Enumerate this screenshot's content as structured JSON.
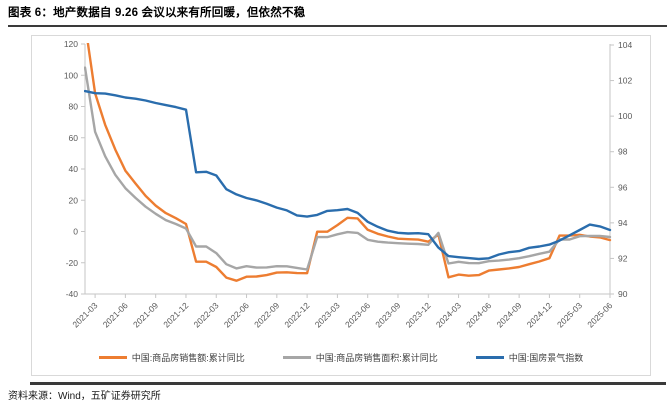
{
  "header": {
    "title": "图表 6：地产数据自 9.26 会议以来有所回暖，但依然不稳"
  },
  "footer": {
    "source": "资料来源：Wind，五矿证券研究所"
  },
  "chart_data": {
    "type": "line",
    "x": [
      "2021-02",
      "2021-03",
      "2021-04",
      "2021-05",
      "2021-06",
      "2021-07",
      "2021-08",
      "2021-09",
      "2021-10",
      "2021-11",
      "2021-12",
      "2022-01",
      "2022-02",
      "2022-03",
      "2022-04",
      "2022-05",
      "2022-06",
      "2022-07",
      "2022-08",
      "2022-09",
      "2022-10",
      "2022-11",
      "2022-12",
      "2023-01",
      "2023-02",
      "2023-03",
      "2023-04",
      "2023-05",
      "2023-06",
      "2023-07",
      "2023-08",
      "2023-09",
      "2023-10",
      "2023-11",
      "2023-12",
      "2024-01",
      "2024-02",
      "2024-03",
      "2024-04",
      "2024-05",
      "2024-06",
      "2024-07",
      "2024-08",
      "2024-09",
      "2024-10",
      "2024-11",
      "2024-12",
      "2025-01",
      "2025-02",
      "2025-03",
      "2025-04",
      "2025-05",
      "2025-06"
    ],
    "x_tick_labels": [
      "2021-03",
      "2021-06",
      "2021-09",
      "2021-12",
      "2022-03",
      "2022-06",
      "2022-09",
      "2022-12",
      "2023-03",
      "2023-06",
      "2023-09",
      "2023-12",
      "2024-03",
      "2024-06",
      "2024-09",
      "2024-12",
      "2025-03",
      "2025-06"
    ],
    "left_axis": {
      "ticks": [
        120,
        100,
        80,
        60,
        40,
        20,
        0,
        -20,
        -40
      ],
      "min": -40,
      "max": 120
    },
    "right_axis": {
      "ticks": [
        104,
        102,
        100,
        98,
        96,
        94,
        92,
        90
      ],
      "min": 90,
      "max": 104
    },
    "grid": "off",
    "legend_position": "bottom",
    "series": [
      {
        "name": "中国:商品房销售额:累计同比",
        "axis": "left",
        "color": "#ED7D31",
        "values": [
          133.4,
          88.5,
          68.2,
          52.4,
          38.9,
          30.7,
          22.8,
          16.6,
          11.8,
          8.5,
          4.8,
          -19.3,
          -19.3,
          -22.7,
          -29.5,
          -31.5,
          -28.9,
          -28.8,
          -27.9,
          -26.3,
          -26.1,
          -26.6,
          -26.7,
          -0.1,
          -0.1,
          4.1,
          8.8,
          8.4,
          1.1,
          -1.5,
          -3.2,
          -4.6,
          -4.9,
          -5.2,
          -6.5,
          -2.0,
          -29.3,
          -27.6,
          -28.3,
          -27.9,
          -25.0,
          -24.3,
          -23.6,
          -22.7,
          -20.9,
          -19.2,
          -17.1,
          -2.6,
          -2.6,
          -2.1,
          -3.2,
          -3.8,
          -5.5
        ]
      },
      {
        "name": "中国:商品房销售面积:累计同比",
        "axis": "left",
        "color": "#A6A6A6",
        "values": [
          104.9,
          63.8,
          48.1,
          36.3,
          27.7,
          21.5,
          15.9,
          11.3,
          7.3,
          4.8,
          1.9,
          -9.6,
          -9.6,
          -13.8,
          -20.9,
          -23.6,
          -22.2,
          -23.1,
          -23.0,
          -22.2,
          -22.3,
          -23.3,
          -24.3,
          -3.6,
          -3.6,
          -1.8,
          -0.4,
          -0.9,
          -5.3,
          -6.5,
          -7.1,
          -7.5,
          -7.8,
          -8.0,
          -8.5,
          -0.9,
          -20.5,
          -19.4,
          -20.2,
          -20.3,
          -19.0,
          -18.6,
          -18.0,
          -17.1,
          -15.8,
          -14.3,
          -12.9,
          -5.1,
          -5.1,
          -3.0,
          -2.8,
          -2.9,
          -3.5
        ]
      },
      {
        "name": "中国:国房景气指数",
        "axis": "right",
        "color": "#2A6DAD",
        "values": [
          101.41,
          101.29,
          101.27,
          101.17,
          101.05,
          100.98,
          100.88,
          100.74,
          100.62,
          100.51,
          100.36,
          96.84,
          96.87,
          96.66,
          95.89,
          95.6,
          95.4,
          95.26,
          95.07,
          94.86,
          94.7,
          94.42,
          94.35,
          94.45,
          94.67,
          94.71,
          94.78,
          94.56,
          94.06,
          93.78,
          93.56,
          93.44,
          93.4,
          93.42,
          93.36,
          92.61,
          92.13,
          92.07,
          92.02,
          91.97,
          92.01,
          92.22,
          92.35,
          92.41,
          92.6,
          92.67,
          92.78,
          93.0,
          93.3,
          93.6,
          93.9,
          93.8,
          93.6
        ]
      }
    ]
  }
}
